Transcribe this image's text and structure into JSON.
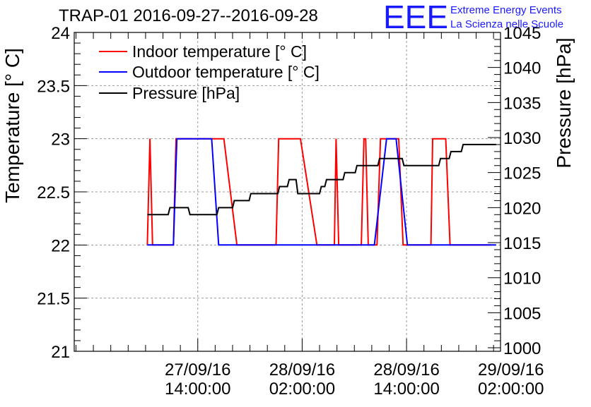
{
  "chart_data": {
    "type": "line",
    "title": "TRAP-01 2016-09-27--2016-09-28",
    "logo_text": "EEE",
    "logo_line1": "Extreme Energy Events",
    "logo_line2": "La Scienza nelle Scuole",
    "ylabel": "Temperature [° C]",
    "y2label": "Pressure [hPa]",
    "xlabel": "",
    "x_unit": "hours since 27/09/16 00:00",
    "xlim": [
      -0.2,
      48.8
    ],
    "ylim": [
      21,
      24
    ],
    "y2lim": [
      999.5,
      1045
    ],
    "yticks": [
      21,
      21.5,
      22,
      22.5,
      23,
      23.5,
      24
    ],
    "ytick_labels": [
      "21",
      "21.5",
      "22",
      "22.5",
      "23",
      "23.5",
      "24"
    ],
    "y2ticks": [
      1000,
      1005,
      1010,
      1015,
      1020,
      1025,
      1030,
      1035,
      1040,
      1045
    ],
    "y2tick_labels": [
      "1000",
      "1005",
      "1010",
      "1015",
      "1020",
      "1025",
      "1030",
      "1035",
      "1040",
      "1045"
    ],
    "xticks": [
      {
        "x": 14,
        "line1": "27/09/16",
        "line2": "14:00:00"
      },
      {
        "x": 26,
        "line1": "28/09/16",
        "line2": "02:00:00"
      },
      {
        "x": 38,
        "line1": "28/09/16",
        "line2": "14:00:00"
      },
      {
        "x": 50,
        "line1": "29/09/16",
        "line2": "02:00:00"
      }
    ],
    "grid": true,
    "legend_position": "top-left",
    "colors": {
      "indoor": "#ff0000",
      "outdoor": "#0000ff",
      "pressure": "#000000",
      "logo": "#1a1aff",
      "grid": "#999999"
    },
    "series": [
      {
        "name": "Indoor temperature [° C]",
        "axis": "left",
        "color": "#ff0000",
        "x": [
          8.2,
          8.5,
          8.8,
          11.2,
          11.5,
          17.0,
          18.5,
          23.0,
          23.3,
          25.8,
          27.7,
          29.7,
          29.9,
          30.2,
          32.8,
          33.1,
          33.3,
          33.6,
          34.6,
          35.0,
          37.1,
          37.6,
          37.7,
          38.1,
          40.8,
          41.0,
          42.5,
          43.0,
          44.3,
          44.6,
          45.7,
          47.7
        ],
        "y": [
          22,
          23,
          22,
          22,
          23,
          23,
          22,
          22,
          23,
          23,
          22,
          22,
          23,
          22,
          22,
          23,
          23,
          22,
          22,
          23,
          23,
          22,
          22,
          22,
          22,
          23,
          23,
          22,
          22,
          22,
          22,
          22
        ]
      },
      {
        "name": "Outdoor temperature [° C]",
        "axis": "left",
        "color": "#0000ff",
        "x": [
          8.2,
          11.2,
          11.6,
          15.6,
          16.4,
          31.2,
          33.6,
          33.8,
          34.3,
          35.7,
          36.8,
          38.1,
          48.3
        ],
        "y": [
          22,
          22,
          23,
          23,
          22,
          22,
          22,
          22,
          22,
          23,
          23,
          22,
          22
        ]
      },
      {
        "name": "Pressure [hPa]",
        "axis": "right",
        "color": "#000000",
        "x": [
          8.2,
          10.6,
          10.8,
          12.9,
          13.1,
          16.2,
          16.4,
          18.0,
          18.2,
          19.9,
          20.1,
          23.2,
          23.4,
          24.3,
          24.5,
          25.3,
          25.5,
          28.0,
          28.2,
          28.6,
          28.8,
          30.7,
          30.9,
          32.1,
          32.3,
          34.7,
          34.9,
          37.5,
          37.7,
          41.7,
          41.9,
          42.9,
          43.1,
          44.3,
          44.5,
          48.3
        ],
        "y": [
          1019,
          1019,
          1020,
          1020,
          1019,
          1019,
          1020,
          1020,
          1021,
          1021,
          1022,
          1022,
          1023,
          1023,
          1024,
          1024,
          1022,
          1022,
          1023,
          1023,
          1024,
          1024,
          1025,
          1025,
          1026,
          1026,
          1027,
          1027,
          1026,
          1026,
          1027,
          1027,
          1028,
          1028,
          1029,
          1029
        ]
      }
    ]
  }
}
